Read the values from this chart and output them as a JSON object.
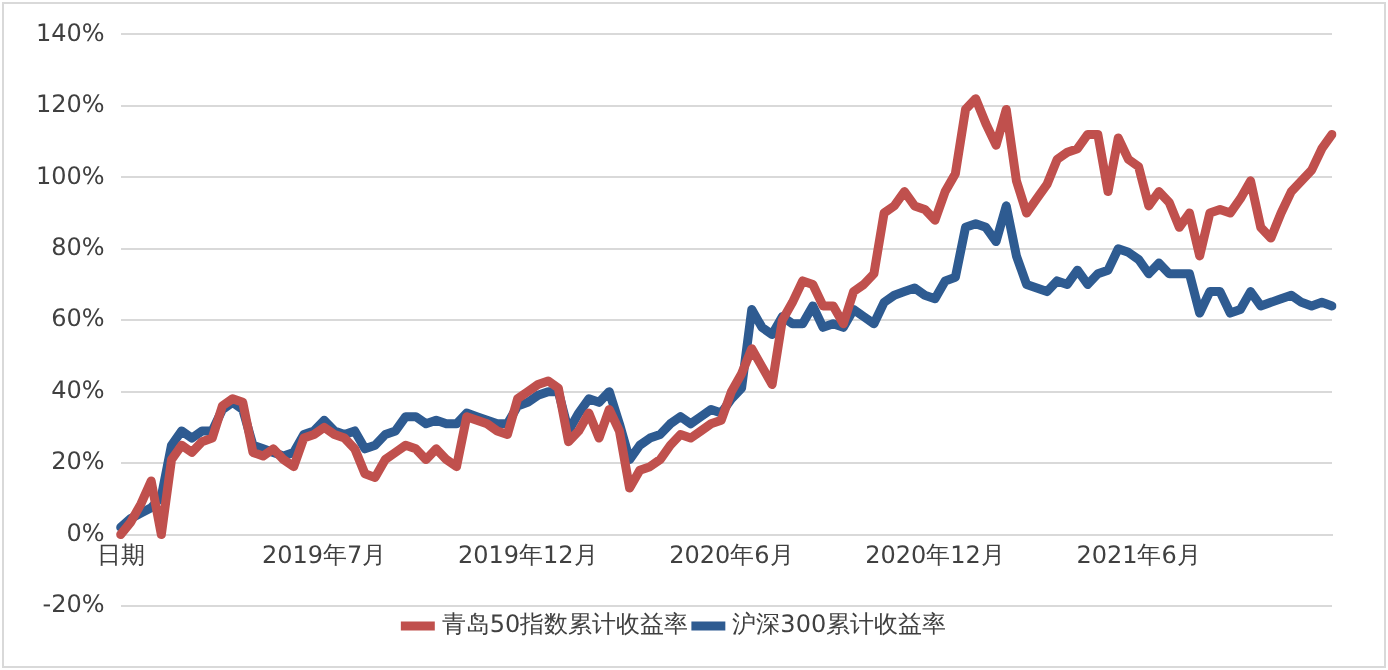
{
  "chart_data": {
    "type": "line",
    "categories": [
      "日期",
      null,
      null,
      null,
      null,
      null,
      null,
      null,
      null,
      null,
      null,
      null,
      null,
      null,
      null,
      null,
      null,
      null,
      null,
      null,
      "2019年7月",
      null,
      null,
      null,
      null,
      null,
      null,
      null,
      null,
      null,
      null,
      null,
      null,
      null,
      null,
      null,
      null,
      null,
      null,
      null,
      "2019年12月",
      null,
      null,
      null,
      null,
      null,
      null,
      null,
      null,
      null,
      null,
      null,
      null,
      null,
      null,
      null,
      null,
      null,
      null,
      null,
      "2020年6月",
      null,
      null,
      null,
      null,
      null,
      null,
      null,
      null,
      null,
      null,
      null,
      null,
      null,
      null,
      null,
      null,
      null,
      null,
      null,
      "2020年12月",
      null,
      null,
      null,
      null,
      null,
      null,
      null,
      null,
      null,
      null,
      null,
      null,
      null,
      null,
      null,
      null,
      null,
      null,
      null,
      "2021年6月",
      null,
      null,
      null,
      null,
      null,
      null,
      null,
      null,
      null,
      null,
      null,
      null,
      null,
      null,
      null,
      null,
      null,
      null,
      null
    ],
    "series": [
      {
        "name": "青岛50指数累计收益率",
        "color": "#c0504d",
        "values": [
          0,
          3.5,
          8.6,
          15,
          0,
          21,
          25,
          23,
          26,
          27,
          36,
          38,
          37,
          23,
          22,
          24,
          21,
          19,
          27,
          28,
          30,
          28,
          27,
          24,
          17,
          16,
          21,
          23,
          25,
          24,
          21,
          24,
          21,
          19,
          33,
          32,
          31,
          29,
          28,
          38,
          40,
          42,
          43,
          41,
          26,
          29,
          34,
          27,
          35,
          29,
          13,
          18,
          19,
          21,
          25,
          28,
          27,
          29,
          31,
          32,
          40,
          45,
          52,
          47,
          42,
          60,
          65,
          71,
          70,
          64,
          64,
          59,
          68,
          70,
          73,
          90,
          92,
          96,
          92,
          91,
          88,
          96,
          101,
          119,
          122,
          115,
          109,
          119,
          99,
          90,
          94,
          98,
          105,
          107,
          108,
          112,
          112,
          96,
          111,
          105,
          103,
          92,
          96,
          93,
          86,
          90,
          78,
          90,
          91,
          90,
          94,
          99,
          86,
          83,
          90,
          96,
          99,
          102,
          108,
          112
        ]
      },
      {
        "name": "沪深300累计收益率",
        "color": "#2e5b91",
        "values": [
          2,
          4.5,
          6,
          7.5,
          10.6,
          25,
          29,
          27,
          29,
          29,
          35,
          37,
          35,
          25,
          24,
          23,
          22,
          23,
          28,
          29,
          32,
          29,
          28,
          29,
          24,
          25,
          28,
          29,
          33,
          33,
          31,
          32,
          31,
          31,
          34,
          33,
          32,
          31,
          31,
          36,
          37,
          39,
          40,
          40,
          29,
          34,
          38,
          37,
          40,
          31,
          21,
          25,
          27,
          28,
          31,
          33,
          31,
          33,
          35,
          34,
          38,
          41,
          63,
          58,
          56,
          61,
          59,
          59,
          64,
          58,
          59,
          58,
          63,
          61,
          59,
          65,
          67,
          68,
          69,
          67,
          66,
          71,
          72,
          86,
          87,
          86,
          82,
          92,
          78,
          70,
          69,
          68,
          71,
          70,
          74,
          70,
          73,
          74,
          80,
          79,
          77,
          73,
          76,
          73,
          73,
          73,
          62,
          68,
          68,
          62,
          63,
          68,
          64,
          65,
          66,
          67,
          65,
          64,
          65,
          64
        ]
      }
    ],
    "ylim": [
      -20,
      140
    ],
    "yticks": [
      {
        "value": -20,
        "label": "-20%"
      },
      {
        "value": 0,
        "label": "0%"
      },
      {
        "value": 20,
        "label": "20%"
      },
      {
        "value": 40,
        "label": "40%"
      },
      {
        "value": 60,
        "label": "60%"
      },
      {
        "value": 80,
        "label": "80%"
      },
      {
        "value": 100,
        "label": "100%"
      },
      {
        "value": 120,
        "label": "120%"
      },
      {
        "value": 140,
        "label": "140%"
      }
    ],
    "grid": "y",
    "legend": "bottom",
    "marker": "none",
    "line_style": "solid"
  }
}
